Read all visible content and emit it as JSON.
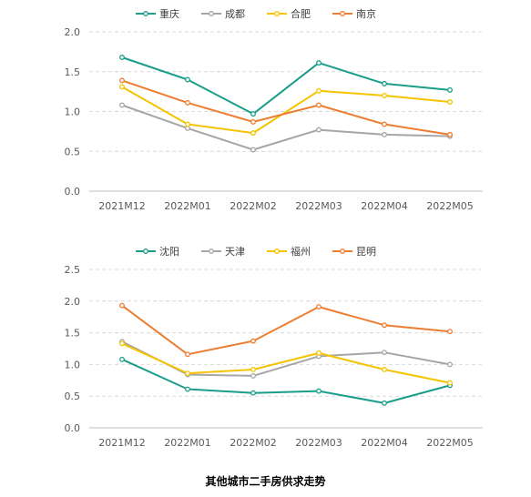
{
  "caption": "其他城市二手房供求走势",
  "chart_data": [
    {
      "type": "line",
      "categories": [
        "2021M12",
        "2022M01",
        "2022M02",
        "2022M03",
        "2022M04",
        "2022M05"
      ],
      "ylim": [
        0,
        2.0
      ],
      "yticks": [
        "0.0",
        "0.5",
        "1.0",
        "1.5",
        "2.0"
      ],
      "grid": true,
      "legend_position": "top",
      "series": [
        {
          "name": "重庆",
          "color": "#1a9e8a",
          "values": [
            1.68,
            1.4,
            0.97,
            1.61,
            1.35,
            1.27
          ]
        },
        {
          "name": "成都",
          "color": "#a6a6a6",
          "values": [
            1.08,
            0.79,
            0.52,
            0.77,
            0.71,
            0.69
          ]
        },
        {
          "name": "合肥",
          "color": "#f5c400",
          "values": [
            1.31,
            0.84,
            0.73,
            1.26,
            1.2,
            1.12
          ]
        },
        {
          "name": "南京",
          "color": "#ed7d31",
          "values": [
            1.39,
            1.11,
            0.87,
            1.08,
            0.84,
            0.71
          ]
        }
      ]
    },
    {
      "type": "line",
      "categories": [
        "2021M12",
        "2022M01",
        "2022M02",
        "2022M03",
        "2022M04",
        "2022M05"
      ],
      "ylim": [
        0,
        2.5
      ],
      "yticks": [
        "0.0",
        "0.5",
        "1.0",
        "1.5",
        "2.0",
        "2.5"
      ],
      "grid": true,
      "legend_position": "top",
      "series": [
        {
          "name": "沈阳",
          "color": "#1a9e8a",
          "values": [
            1.08,
            0.61,
            0.55,
            0.58,
            0.39,
            0.67
          ]
        },
        {
          "name": "天津",
          "color": "#a6a6a6",
          "values": [
            1.36,
            0.84,
            0.82,
            1.13,
            1.19,
            1.0
          ]
        },
        {
          "name": "福州",
          "color": "#f5c400",
          "values": [
            1.33,
            0.86,
            0.92,
            1.18,
            0.92,
            0.71
          ]
        },
        {
          "name": "昆明",
          "color": "#ed7d31",
          "values": [
            1.93,
            1.16,
            1.37,
            1.91,
            1.62,
            1.52
          ]
        }
      ]
    }
  ]
}
